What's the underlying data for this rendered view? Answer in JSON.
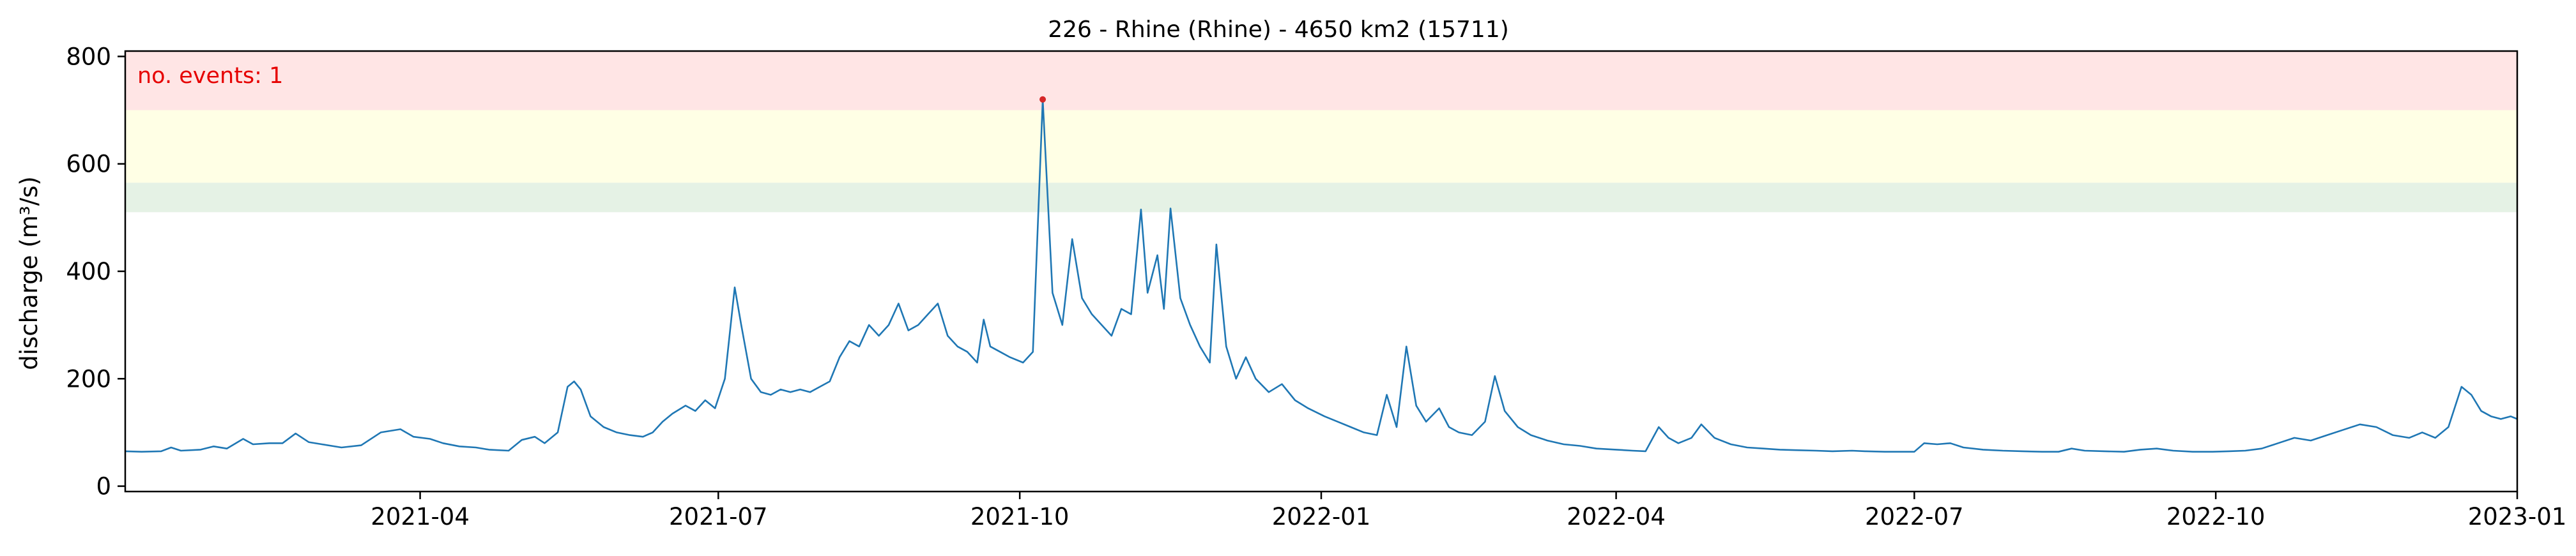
{
  "chart_data": {
    "type": "line",
    "title": "226 - Rhine (Rhine) - 4650 km2 (15711)",
    "xlabel": "",
    "ylabel": "discharge (m³/s)",
    "annotation": "no. events: 1",
    "xlim": [
      "2021-01-01",
      "2023-01-01"
    ],
    "ylim": [
      -10,
      810
    ],
    "x_ticks": [
      "2021-04",
      "2021-07",
      "2021-10",
      "2022-01",
      "2022-04",
      "2022-07",
      "2022-10",
      "2023-01"
    ],
    "y_ticks": [
      0,
      200,
      400,
      600,
      800
    ],
    "grid": false,
    "bands": [
      {
        "name": "return period band 1",
        "ymin": 510,
        "ymax": 565,
        "color": "#e5f2e5"
      },
      {
        "name": "return period band 2",
        "ymin": 565,
        "ymax": 700,
        "color": "#ffffe5"
      },
      {
        "name": "return period band 3",
        "ymin": 700,
        "ymax": 810,
        "color": "#ffe5e5"
      }
    ],
    "series": [
      {
        "color": "#1f77b4",
        "points": [
          [
            "2021-01-01",
            65
          ],
          [
            "2021-01-06",
            64
          ],
          [
            "2021-01-12",
            65
          ],
          [
            "2021-01-15",
            72
          ],
          [
            "2021-01-18",
            66
          ],
          [
            "2021-01-24",
            68
          ],
          [
            "2021-01-28",
            74
          ],
          [
            "2021-02-01",
            70
          ],
          [
            "2021-02-06",
            88
          ],
          [
            "2021-02-09",
            78
          ],
          [
            "2021-02-14",
            80
          ],
          [
            "2021-02-18",
            80
          ],
          [
            "2021-02-22",
            98
          ],
          [
            "2021-02-26",
            82
          ],
          [
            "2021-03-02",
            78
          ],
          [
            "2021-03-08",
            72
          ],
          [
            "2021-03-14",
            76
          ],
          [
            "2021-03-20",
            100
          ],
          [
            "2021-03-26",
            106
          ],
          [
            "2021-03-30",
            92
          ],
          [
            "2021-04-04",
            88
          ],
          [
            "2021-04-08",
            80
          ],
          [
            "2021-04-13",
            74
          ],
          [
            "2021-04-18",
            72
          ],
          [
            "2021-04-22",
            68
          ],
          [
            "2021-04-28",
            66
          ],
          [
            "2021-05-02",
            86
          ],
          [
            "2021-05-06",
            92
          ],
          [
            "2021-05-09",
            80
          ],
          [
            "2021-05-13",
            100
          ],
          [
            "2021-05-16",
            185
          ],
          [
            "2021-05-18",
            195
          ],
          [
            "2021-05-20",
            180
          ],
          [
            "2021-05-23",
            130
          ],
          [
            "2021-05-27",
            110
          ],
          [
            "2021-05-31",
            100
          ],
          [
            "2021-06-04",
            95
          ],
          [
            "2021-06-08",
            92
          ],
          [
            "2021-06-11",
            100
          ],
          [
            "2021-06-14",
            120
          ],
          [
            "2021-06-17",
            135
          ],
          [
            "2021-06-21",
            150
          ],
          [
            "2021-06-24",
            140
          ],
          [
            "2021-06-27",
            160
          ],
          [
            "2021-06-30",
            145
          ],
          [
            "2021-07-03",
            200
          ],
          [
            "2021-07-06",
            370
          ],
          [
            "2021-07-08",
            300
          ],
          [
            "2021-07-11",
            200
          ],
          [
            "2021-07-14",
            175
          ],
          [
            "2021-07-17",
            170
          ],
          [
            "2021-07-20",
            180
          ],
          [
            "2021-07-23",
            175
          ],
          [
            "2021-07-26",
            180
          ],
          [
            "2021-07-29",
            175
          ],
          [
            "2021-08-01",
            185
          ],
          [
            "2021-08-04",
            195
          ],
          [
            "2021-08-07",
            240
          ],
          [
            "2021-08-10",
            270
          ],
          [
            "2021-08-13",
            260
          ],
          [
            "2021-08-16",
            300
          ],
          [
            "2021-08-19",
            280
          ],
          [
            "2021-08-22",
            300
          ],
          [
            "2021-08-25",
            340
          ],
          [
            "2021-08-28",
            290
          ],
          [
            "2021-08-31",
            300
          ],
          [
            "2021-09-03",
            320
          ],
          [
            "2021-09-06",
            340
          ],
          [
            "2021-09-09",
            280
          ],
          [
            "2021-09-12",
            260
          ],
          [
            "2021-09-15",
            250
          ],
          [
            "2021-09-18",
            230
          ],
          [
            "2021-09-20",
            310
          ],
          [
            "2021-09-22",
            260
          ],
          [
            "2021-09-25",
            250
          ],
          [
            "2021-09-28",
            240
          ],
          [
            "2021-10-02",
            230
          ],
          [
            "2021-10-05",
            250
          ],
          [
            "2021-10-08",
            720
          ],
          [
            "2021-10-11",
            360
          ],
          [
            "2021-10-14",
            300
          ],
          [
            "2021-10-17",
            460
          ],
          [
            "2021-10-20",
            350
          ],
          [
            "2021-10-23",
            320
          ],
          [
            "2021-10-26",
            300
          ],
          [
            "2021-10-29",
            280
          ],
          [
            "2021-11-01",
            330
          ],
          [
            "2021-11-04",
            320
          ],
          [
            "2021-11-07",
            515
          ],
          [
            "2021-11-09",
            360
          ],
          [
            "2021-11-12",
            430
          ],
          [
            "2021-11-14",
            330
          ],
          [
            "2021-11-16",
            517
          ],
          [
            "2021-11-19",
            350
          ],
          [
            "2021-11-22",
            300
          ],
          [
            "2021-11-25",
            260
          ],
          [
            "2021-11-28",
            230
          ],
          [
            "2021-11-30",
            450
          ],
          [
            "2021-12-03",
            260
          ],
          [
            "2021-12-06",
            200
          ],
          [
            "2021-12-09",
            240
          ],
          [
            "2021-12-12",
            200
          ],
          [
            "2021-12-16",
            175
          ],
          [
            "2021-12-20",
            190
          ],
          [
            "2021-12-24",
            160
          ],
          [
            "2021-12-28",
            145
          ],
          [
            "2022-01-02",
            130
          ],
          [
            "2022-01-06",
            120
          ],
          [
            "2022-01-10",
            110
          ],
          [
            "2022-01-14",
            100
          ],
          [
            "2022-01-18",
            95
          ],
          [
            "2022-01-21",
            170
          ],
          [
            "2022-01-24",
            110
          ],
          [
            "2022-01-27",
            260
          ],
          [
            "2022-01-30",
            150
          ],
          [
            "2022-02-02",
            120
          ],
          [
            "2022-02-06",
            145
          ],
          [
            "2022-02-09",
            110
          ],
          [
            "2022-02-12",
            100
          ],
          [
            "2022-02-16",
            95
          ],
          [
            "2022-02-20",
            120
          ],
          [
            "2022-02-23",
            205
          ],
          [
            "2022-02-26",
            140
          ],
          [
            "2022-03-02",
            110
          ],
          [
            "2022-03-06",
            95
          ],
          [
            "2022-03-11",
            85
          ],
          [
            "2022-03-16",
            78
          ],
          [
            "2022-03-21",
            75
          ],
          [
            "2022-03-26",
            70
          ],
          [
            "2022-04-01",
            68
          ],
          [
            "2022-04-06",
            66
          ],
          [
            "2022-04-10",
            65
          ],
          [
            "2022-04-14",
            110
          ],
          [
            "2022-04-17",
            90
          ],
          [
            "2022-04-20",
            80
          ],
          [
            "2022-04-24",
            90
          ],
          [
            "2022-04-27",
            115
          ],
          [
            "2022-05-01",
            90
          ],
          [
            "2022-05-06",
            78
          ],
          [
            "2022-05-11",
            72
          ],
          [
            "2022-05-16",
            70
          ],
          [
            "2022-05-21",
            68
          ],
          [
            "2022-05-26",
            67
          ],
          [
            "2022-06-01",
            66
          ],
          [
            "2022-06-06",
            65
          ],
          [
            "2022-06-12",
            66
          ],
          [
            "2022-06-16",
            65
          ],
          [
            "2022-06-22",
            64
          ],
          [
            "2022-06-28",
            64
          ],
          [
            "2022-07-01",
            64
          ],
          [
            "2022-07-04",
            80
          ],
          [
            "2022-07-08",
            78
          ],
          [
            "2022-07-12",
            80
          ],
          [
            "2022-07-16",
            72
          ],
          [
            "2022-07-22",
            68
          ],
          [
            "2022-07-28",
            66
          ],
          [
            "2022-08-03",
            65
          ],
          [
            "2022-08-09",
            64
          ],
          [
            "2022-08-14",
            64
          ],
          [
            "2022-08-18",
            70
          ],
          [
            "2022-08-22",
            66
          ],
          [
            "2022-08-28",
            65
          ],
          [
            "2022-09-03",
            64
          ],
          [
            "2022-09-08",
            68
          ],
          [
            "2022-09-13",
            70
          ],
          [
            "2022-09-18",
            66
          ],
          [
            "2022-09-24",
            64
          ],
          [
            "2022-09-30",
            64
          ],
          [
            "2022-10-05",
            65
          ],
          [
            "2022-10-10",
            66
          ],
          [
            "2022-10-15",
            70
          ],
          [
            "2022-10-20",
            80
          ],
          [
            "2022-10-25",
            90
          ],
          [
            "2022-10-30",
            85
          ],
          [
            "2022-11-04",
            95
          ],
          [
            "2022-11-09",
            105
          ],
          [
            "2022-11-14",
            115
          ],
          [
            "2022-11-19",
            110
          ],
          [
            "2022-11-24",
            95
          ],
          [
            "2022-11-29",
            90
          ],
          [
            "2022-12-03",
            100
          ],
          [
            "2022-12-07",
            90
          ],
          [
            "2022-12-11",
            110
          ],
          [
            "2022-12-15",
            185
          ],
          [
            "2022-12-18",
            170
          ],
          [
            "2022-12-21",
            140
          ],
          [
            "2022-12-24",
            130
          ],
          [
            "2022-12-27",
            125
          ],
          [
            "2022-12-30",
            130
          ],
          [
            "2023-01-01",
            125
          ]
        ]
      }
    ],
    "events": [
      {
        "x": "2021-10-08",
        "y": 720,
        "color": "#d62728"
      }
    ]
  }
}
